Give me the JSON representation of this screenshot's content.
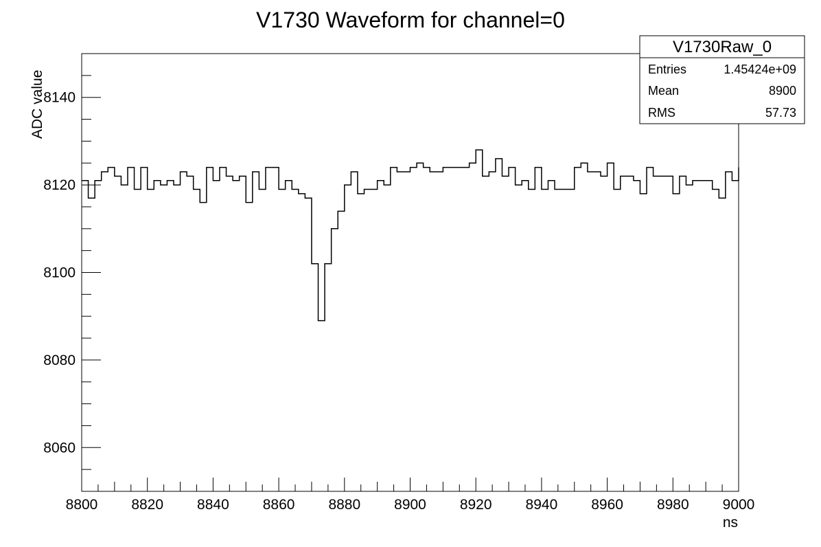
{
  "chart_data": {
    "type": "histogram-step",
    "title": "V1730 Waveform for channel=0",
    "xlabel": "ns",
    "ylabel": "ADC value",
    "xlim": [
      8800,
      9000
    ],
    "ylim": [
      8050,
      8150
    ],
    "x_ticks": [
      8800,
      8820,
      8840,
      8860,
      8880,
      8900,
      8920,
      8940,
      8960,
      8980,
      9000
    ],
    "y_ticks": [
      8060,
      8080,
      8100,
      8120,
      8140
    ],
    "bin_width": 2,
    "values": [
      8121,
      8117,
      8121,
      8123,
      8124,
      8122,
      8120,
      8124,
      8119,
      8124,
      8119,
      8121,
      8120,
      8121,
      8120,
      8123,
      8122,
      8119,
      8116,
      8124,
      8121,
      8124,
      8122,
      8121,
      8122,
      8116,
      8123,
      8119,
      8124,
      8124,
      8119,
      8121,
      8119,
      8118,
      8117,
      8102,
      8089,
      8102,
      8110,
      8114,
      8120,
      8123,
      8118,
      8119,
      8119,
      8121,
      8120,
      8124,
      8123,
      8123,
      8124,
      8125,
      8124,
      8123,
      8123,
      8124,
      8124,
      8124,
      8124,
      8125,
      8128,
      8122,
      8123,
      8126,
      8122,
      8124,
      8120,
      8121,
      8119,
      8124,
      8119,
      8121,
      8119,
      8119,
      8119,
      8124,
      8125,
      8123,
      8123,
      8122,
      8125,
      8119,
      8122,
      8122,
      8121,
      8118,
      8124,
      8122,
      8122,
      8122,
      8118,
      8122,
      8120,
      8121,
      8121,
      8121,
      8119,
      8117,
      8123,
      8121,
      8124
    ],
    "stats_box": {
      "name": "V1730Raw_0",
      "rows": [
        {
          "label": "Entries",
          "value": "1.45424e+09"
        },
        {
          "label": "Mean",
          "value": "8900"
        },
        {
          "label": "RMS",
          "value": "57.73"
        }
      ]
    },
    "grid": false,
    "legend": "top-right stats box"
  }
}
